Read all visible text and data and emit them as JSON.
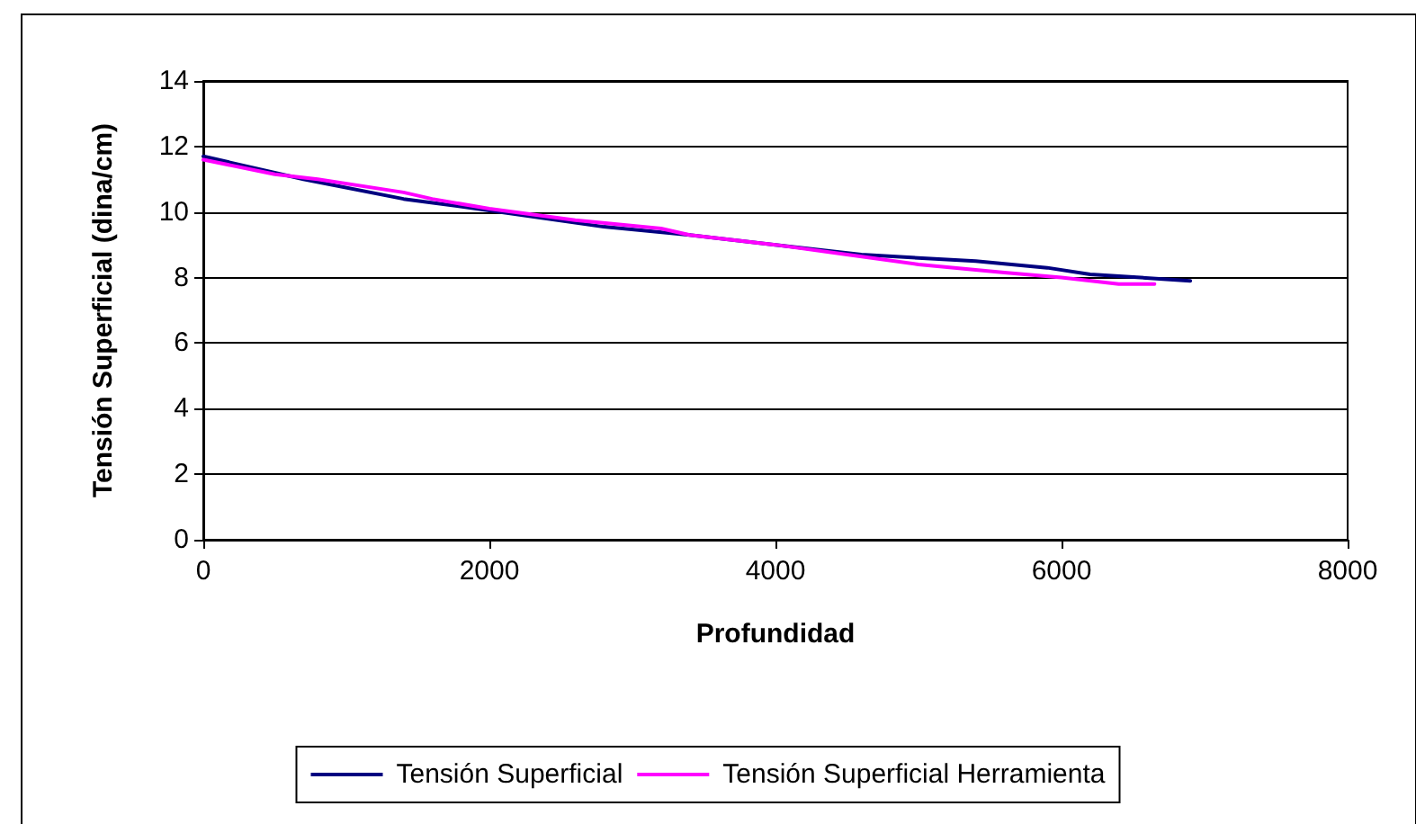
{
  "chart_data": {
    "type": "line",
    "xlabel": "Profundidad",
    "ylabel": "Tensión Superficial (dina/cm)",
    "xlim": [
      0,
      8000
    ],
    "xticks": [
      0,
      2000,
      4000,
      6000,
      8000
    ],
    "ylim": [
      0,
      14
    ],
    "yticks": [
      0,
      2,
      4,
      6,
      8,
      10,
      12,
      14
    ],
    "grid": "y",
    "legend": "bottom",
    "marker": "none",
    "line_style": "solid",
    "series": [
      {
        "name": "Tensión Superficial",
        "color": "#000080",
        "x": [
          0,
          700,
          1400,
          2000,
          2800,
          3400,
          4000,
          4600,
          5400,
          5900,
          6200,
          6900
        ],
        "values": [
          11.7,
          11.0,
          10.4,
          10.05,
          9.55,
          9.3,
          9.0,
          8.7,
          8.5,
          8.3,
          8.1,
          7.9
        ]
      },
      {
        "name": "Tensión Superficial Herramienta",
        "color": "#ff00ff",
        "x": [
          0,
          500,
          800,
          1400,
          1600,
          2000,
          2600,
          3200,
          3400,
          4000,
          4500,
          5000,
          5600,
          6000,
          6400,
          6650
        ],
        "values": [
          11.6,
          11.15,
          11.0,
          10.6,
          10.4,
          10.1,
          9.75,
          9.5,
          9.3,
          9.0,
          8.7,
          8.4,
          8.15,
          8.0,
          7.8,
          7.8
        ]
      }
    ]
  }
}
